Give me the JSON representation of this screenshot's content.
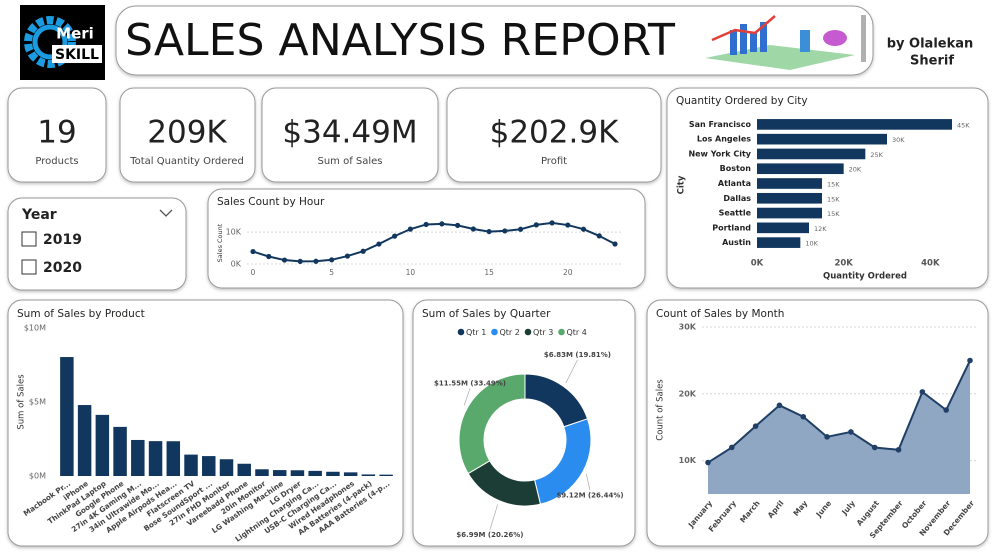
{
  "header": {
    "logo_top": "Meri",
    "logo_bottom": "SKILL",
    "title": "SALES ANALYSIS REPORT",
    "author_line1": "by Olalekan",
    "author_line2": "Sherif"
  },
  "kpis": [
    {
      "value": "19",
      "label": "Products"
    },
    {
      "value": "209K",
      "label": "Total Quantity Ordered"
    },
    {
      "value": "$34.49M",
      "label": "Sum of Sales"
    },
    {
      "value": "$202.9K",
      "label": "Profit"
    }
  ],
  "slicer": {
    "title": "Year",
    "options": [
      "2019",
      "2020"
    ]
  },
  "chart_data": [
    {
      "type": "hbar",
      "title": "Quantity Ordered by City",
      "x_label": "Quantity Ordered",
      "y_label": "City",
      "categories": [
        "San Francisco",
        "Los Angeles",
        "New York City",
        "Boston",
        "Atlanta",
        "Dallas",
        "Seattle",
        "Portland",
        "Austin"
      ],
      "values": [
        45000,
        30000,
        25000,
        20000,
        15000,
        15000,
        15000,
        12000,
        10000
      ],
      "value_labels": [
        "45K",
        "30K",
        "25K",
        "20K",
        "15K",
        "15K",
        "15K",
        "12K",
        "10K"
      ],
      "color": "#12375e",
      "xlim": [
        0,
        48000
      ],
      "xticks": [
        {
          "value": 0,
          "label": "0K"
        },
        {
          "value": 20000,
          "label": "20K"
        },
        {
          "value": 40000,
          "label": "40K"
        }
      ],
      "grid": false
    },
    {
      "type": "line",
      "title": "Sales Count by Hour",
      "y_label": "Sales Count",
      "x": [
        0,
        1,
        2,
        3,
        4,
        5,
        6,
        7,
        8,
        9,
        10,
        11,
        12,
        13,
        14,
        15,
        16,
        17,
        18,
        19,
        20,
        21,
        22,
        23
      ],
      "values": [
        3910,
        2350,
        1243,
        831,
        854,
        1321,
        2482,
        4011,
        6256,
        8748,
        10944,
        12411,
        12587,
        12129,
        10984,
        10175,
        10384,
        10899,
        12280,
        12905,
        12228,
        10921,
        8822,
        6275
      ],
      "color": "#12375e",
      "xlim": [
        0,
        23
      ],
      "xticks": [
        0,
        5,
        10,
        15,
        20
      ],
      "ylim": [
        0,
        13500
      ],
      "yticks": [
        {
          "value": 0,
          "label": "0K"
        },
        {
          "value": 10000,
          "label": "10K"
        }
      ],
      "grid": true
    },
    {
      "type": "bar",
      "title": "Sum of Sales by Product",
      "y_label": "Sum of Sales",
      "categories": [
        "Macbook Pr...",
        "iPhone",
        "ThinkPad Laptop",
        "Google Phone",
        "27in 4K Gaming M...",
        "34in Ultrawide Mo...",
        "Apple Airpods Hea...",
        "Flatscreen TV",
        "Bose SoundSport ...",
        "27in FHD Monitor",
        "Vareebadd Phone",
        "20in Monitor",
        "LG Washing Machine",
        "LG Dryer",
        "Lightning Charging Ca...",
        "USB-C Charging Ca...",
        "Wired Headphones",
        "AA Batteries (4-pack)",
        "AAA Batteries (4-p..."
      ],
      "values": [
        8037600,
        4794300,
        4129959,
        3319200,
        2435098,
        2355558,
        2349150,
        1445700,
        1345566,
        1132425,
        827200,
        454149,
        399600,
        387600,
        347094,
        286501,
        246478,
        106118,
        92740
      ],
      "color": "#12375e",
      "ylim": [
        0,
        10000000
      ],
      "yticks": [
        {
          "value": 0,
          "label": "$0M"
        },
        {
          "value": 5000000,
          "label": "$5M"
        },
        {
          "value": 10000000,
          "label": "$10M"
        }
      ],
      "grid": false
    },
    {
      "type": "donut",
      "title": "Sum of Sales by Quarter",
      "legend": "top",
      "categories": [
        "Qtr 1",
        "Qtr 2",
        "Qtr 3",
        "Qtr 4"
      ],
      "values": [
        6830000,
        9120000,
        6990000,
        11550000
      ],
      "value_labels": [
        "$6.83M (19.81%)",
        "$9.12M (26.44%)",
        "$6.99M (20.26%)",
        "$11.55M (33.49%)"
      ],
      "colors": [
        "#12375e",
        "#2b8cf0",
        "#1b3d36",
        "#5aa96c"
      ]
    },
    {
      "type": "area",
      "title": "Count of Sales by Month",
      "y_label": "Count of Sales",
      "categories": [
        "January",
        "February",
        "March",
        "April",
        "May",
        "June",
        "July",
        "August",
        "September",
        "October",
        "November",
        "December"
      ],
      "values": [
        9709,
        11975,
        15153,
        18279,
        16566,
        13554,
        14293,
        11961,
        11621,
        20282,
        17573,
        24984
      ],
      "color": "#1f3f66",
      "fill": "#8fa7c2",
      "ylim": [
        5000,
        30000
      ],
      "yticks": [
        {
          "value": 10000,
          "label": "10K"
        },
        {
          "value": 20000,
          "label": "20K"
        },
        {
          "value": 30000,
          "label": "30K"
        }
      ],
      "grid": true
    }
  ]
}
